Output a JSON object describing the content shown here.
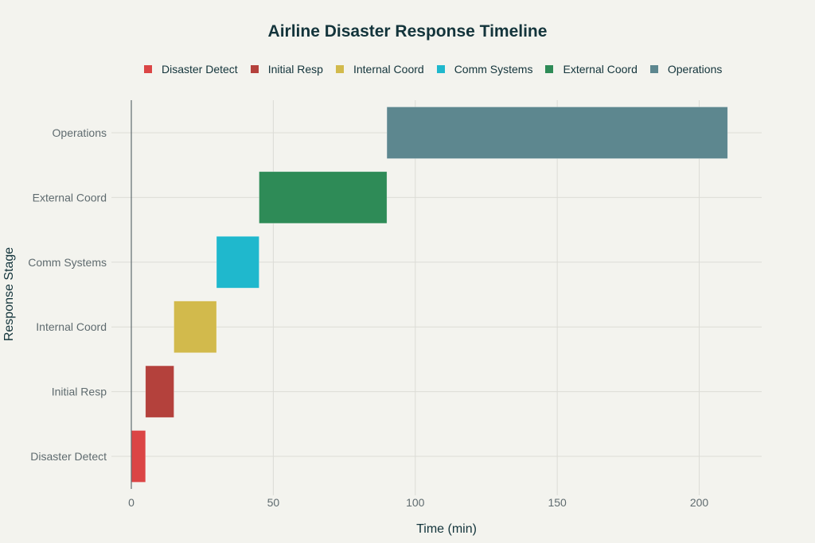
{
  "chart_data": {
    "type": "bar",
    "orientation": "horizontal",
    "title": "Airline Disaster Response Timeline",
    "xlabel": "Time (min)",
    "ylabel": "Response Stage",
    "xlim": [
      0,
      222
    ],
    "xticks": [
      0,
      50,
      100,
      150,
      200
    ],
    "grid": true,
    "legend_position": "top",
    "categories": [
      "Disaster Detect",
      "Initial Resp",
      "Internal Coord",
      "Comm Systems",
      "External Coord",
      "Operations"
    ],
    "series": [
      {
        "name": "Disaster Detect",
        "start": 0,
        "end": 5,
        "color": "#DB4545"
      },
      {
        "name": "Initial Resp",
        "start": 5,
        "end": 15,
        "color": "#B4413C"
      },
      {
        "name": "Internal Coord",
        "start": 15,
        "end": 30,
        "color": "#D2BA4C"
      },
      {
        "name": "Comm Systems",
        "start": 30,
        "end": 45,
        "color": "#1FB8CD"
      },
      {
        "name": "External Coord",
        "start": 45,
        "end": 90,
        "color": "#2E8B57"
      },
      {
        "name": "Operations",
        "start": 90,
        "end": 210,
        "color": "#5D878F"
      }
    ]
  }
}
